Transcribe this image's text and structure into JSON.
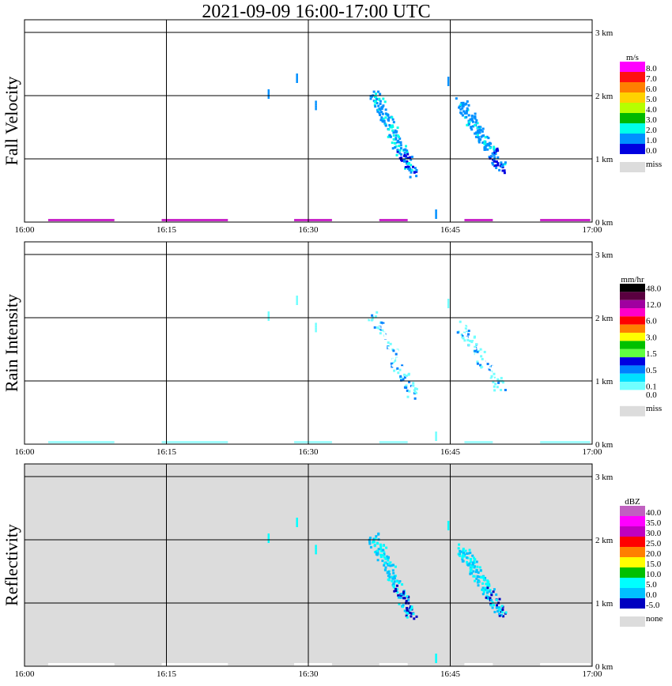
{
  "title": "2021-09-09   16:00-17:00 UTC",
  "time_ticks": [
    "16:00",
    "16:15",
    "16:30",
    "16:45",
    "17:00"
  ],
  "height_ticks": [
    "0 km",
    "1 km",
    "2 km",
    "3 km"
  ],
  "colors": {
    "grid": "#000000",
    "missing": "#dcdcdc"
  },
  "panels": [
    {
      "ylabel": "Fall Velocity",
      "background": "#ffffff",
      "legend": {
        "unit": "m/s",
        "entries": [
          {
            "label": "8.0",
            "color": "#ff00ff"
          },
          {
            "label": "7.0",
            "color": "#ff1010"
          },
          {
            "label": "6.0",
            "color": "#ff7f00"
          },
          {
            "label": "5.0",
            "color": "#ffd200"
          },
          {
            "label": "4.0",
            "color": "#b6ff00"
          },
          {
            "label": "3.0",
            "color": "#00b800"
          },
          {
            "label": "2.0",
            "color": "#00ffea"
          },
          {
            "label": "1.0",
            "color": "#0090ff"
          },
          {
            "label": "0.0",
            "color": "#0000e0"
          }
        ],
        "miss_label": "miss"
      }
    },
    {
      "ylabel": "Rain Intensity",
      "background": "#ffffff",
      "legend": {
        "unit": "mm/hr",
        "entries": [
          {
            "label": "48.0",
            "color": "#000000"
          },
          {
            "label": "",
            "color": "#5a0040"
          },
          {
            "label": "12.0",
            "color": "#a000a0"
          },
          {
            "label": "",
            "color": "#ff00c8"
          },
          {
            "label": "6.0",
            "color": "#ff0000"
          },
          {
            "label": "",
            "color": "#ff8000"
          },
          {
            "label": "3.0",
            "color": "#ffff00"
          },
          {
            "label": "",
            "color": "#00c000"
          },
          {
            "label": "1.5",
            "color": "#60ff40"
          },
          {
            "label": "",
            "color": "#0000e0"
          },
          {
            "label": "0.5",
            "color": "#0080ff"
          },
          {
            "label": "",
            "color": "#00e0ff"
          },
          {
            "label": "0.1",
            "color": "#70ffff"
          },
          {
            "label": "0.0",
            "color": "#ffffff"
          }
        ],
        "miss_label": "miss"
      }
    },
    {
      "ylabel": "Reflectivity",
      "background": "#dcdcdc",
      "legend": {
        "unit": "dBZ",
        "entries": [
          {
            "label": "40.0",
            "color": "#c060c0"
          },
          {
            "label": "35.0",
            "color": "#ff00ff"
          },
          {
            "label": "30.0",
            "color": "#c000c0"
          },
          {
            "label": "25.0",
            "color": "#ff0000"
          },
          {
            "label": "20.0",
            "color": "#ff8000"
          },
          {
            "label": "15.0",
            "color": "#ffff00"
          },
          {
            "label": "10.0",
            "color": "#00c000"
          },
          {
            "label": "5.0",
            "color": "#00ffff"
          },
          {
            "label": "0.0",
            "color": "#00c0ff"
          },
          {
            "label": "-5.0",
            "color": "#0000c0"
          }
        ],
        "miss_label": "none"
      }
    }
  ],
  "chart_data": {
    "type": "heatmap",
    "title": "2021-09-09   16:00-17:00 UTC",
    "x_axis": {
      "unit": "UTC",
      "range": [
        "16:00",
        "17:00"
      ],
      "ticks": [
        "16:00",
        "16:15",
        "16:30",
        "16:45",
        "17:00"
      ]
    },
    "y_axis": {
      "unit": "km",
      "range": [
        0,
        3.2
      ],
      "ticks": [
        "0 km",
        "1 km",
        "2 km",
        "3 km"
      ]
    },
    "grid": true,
    "precipitation_bands": [
      {
        "time_start": "16:36.8",
        "time_end": "16:40.9",
        "top_km": 2.05,
        "bottom_km": 0.8
      },
      {
        "time_start": "16:46.0",
        "time_end": "16:50.4",
        "top_km": 1.9,
        "bottom_km": 0.85
      }
    ],
    "isolated_echoes": [
      {
        "time": "16:25.7",
        "height_km": 2.1
      },
      {
        "time": "16:28.7",
        "height_km": 2.35
      },
      {
        "time": "16:30.7",
        "height_km": 1.92
      },
      {
        "time": "16:44.7",
        "height_km": 2.3
      },
      {
        "time": "16:43.4",
        "height_km": 0.2
      }
    ],
    "series": [
      {
        "name": "Fall Velocity",
        "unit": "m/s",
        "band_values": [
          1.8,
          1.6
        ]
      },
      {
        "name": "Rain Intensity",
        "unit": "mm/hr",
        "band_values": [
          0.1,
          0.1
        ]
      },
      {
        "name": "Reflectivity",
        "unit": "dBZ",
        "band_values": [
          5.0,
          5.0
        ]
      }
    ]
  }
}
